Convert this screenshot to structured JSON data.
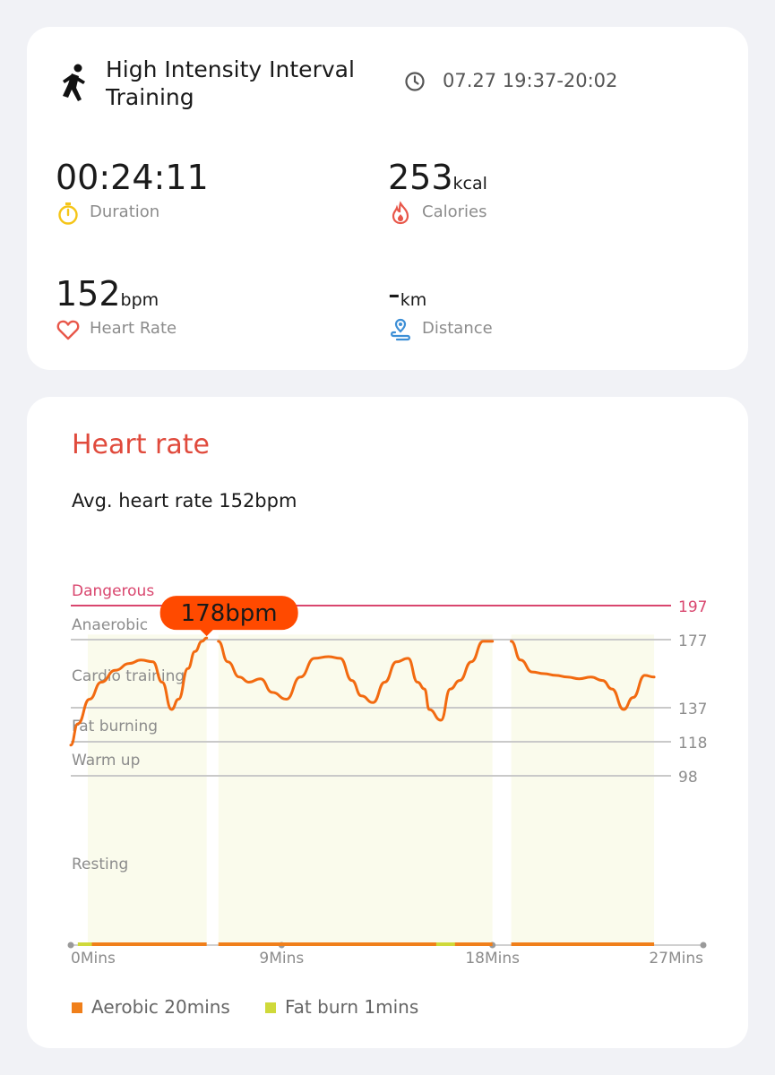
{
  "workout": {
    "icon": "running-person-icon",
    "title": "High Intensity Interval Training",
    "time_range": "07.27 19:37-20:02"
  },
  "metrics": {
    "duration": {
      "value": "00:24:11",
      "label": "Duration",
      "icon": "stopwatch-icon",
      "color": "#f5c518"
    },
    "calories": {
      "value": "253",
      "unit": "kcal",
      "label": "Calories",
      "icon": "flame-icon",
      "color": "#e8574a"
    },
    "heart_rate": {
      "value": "152",
      "unit": "bpm",
      "label": "Heart Rate",
      "icon": "heart-icon",
      "color": "#e8574a"
    },
    "distance": {
      "value": "-",
      "unit": "km",
      "label": "Distance",
      "icon": "route-icon",
      "color": "#3d8fd6"
    }
  },
  "heart_rate_section": {
    "title": "Heart rate",
    "avg_text": "Avg. heart rate 152bpm",
    "peak_label": "178bpm"
  },
  "legend": [
    {
      "label": "Aerobic 20mins",
      "color": "#f07f1a"
    },
    {
      "label": "Fat burn 1mins",
      "color": "#cfd93a"
    }
  ],
  "chart_data": {
    "type": "line",
    "x_unit": "Mins",
    "xlim": [
      0,
      27
    ],
    "x_ticks": [
      0,
      9,
      18,
      27
    ],
    "x_tick_labels": [
      "0Mins",
      "9Mins",
      "18Mins",
      "27Mins"
    ],
    "zones": [
      {
        "name": "Dangerous",
        "threshold": 197,
        "color": "#d9466e"
      },
      {
        "name": "Anaerobic",
        "threshold": 177,
        "color": "#8c8c8c"
      },
      {
        "name": "Cardio training",
        "threshold": 137,
        "color": "#8c8c8c"
      },
      {
        "name": "Fat burning",
        "threshold": 118,
        "color": "#8c8c8c"
      },
      {
        "name": "Warm up",
        "threshold": 98,
        "color": "#8c8c8c"
      },
      {
        "name": "Resting",
        "threshold": null,
        "color": "#8c8c8c"
      }
    ],
    "line_color": "#f26a10",
    "peak": {
      "x": 5.8,
      "y": 178
    },
    "segments": [
      {
        "x": [
          0,
          0.3,
          0.8,
          1.3,
          1.9,
          2.5,
          3.0,
          3.5,
          3.9,
          4.3,
          4.6,
          5.0,
          5.3,
          5.6,
          5.8
        ],
        "y": [
          116,
          128,
          142,
          152,
          159,
          163,
          165,
          164,
          152,
          136,
          142,
          160,
          170,
          176,
          178
        ]
      },
      {
        "x": [
          6.3,
          6.7,
          7.2,
          7.6,
          8.1,
          8.6,
          9.2,
          9.8,
          10.4,
          11.0,
          11.5,
          12.0,
          12.4,
          12.9,
          13.4,
          13.9,
          14.4,
          14.8,
          15.1,
          15.3,
          15.8,
          16.2,
          16.6,
          17.1,
          17.6,
          18.0
        ],
        "y": [
          176,
          164,
          155,
          152,
          154,
          146,
          142,
          155,
          166,
          167,
          166,
          153,
          144,
          140,
          152,
          164,
          166,
          152,
          148,
          136,
          130,
          148,
          153,
          164,
          176,
          176
        ]
      },
      {
        "x": [
          18.8,
          19.2,
          19.7,
          20.2,
          20.7,
          21.2,
          21.7,
          22.2,
          22.7,
          23.1,
          23.6,
          24.0,
          24.5,
          24.9
        ],
        "y": [
          176,
          165,
          158,
          157,
          156,
          155,
          154,
          155,
          153,
          148,
          136,
          143,
          156,
          155
        ]
      }
    ]
  }
}
